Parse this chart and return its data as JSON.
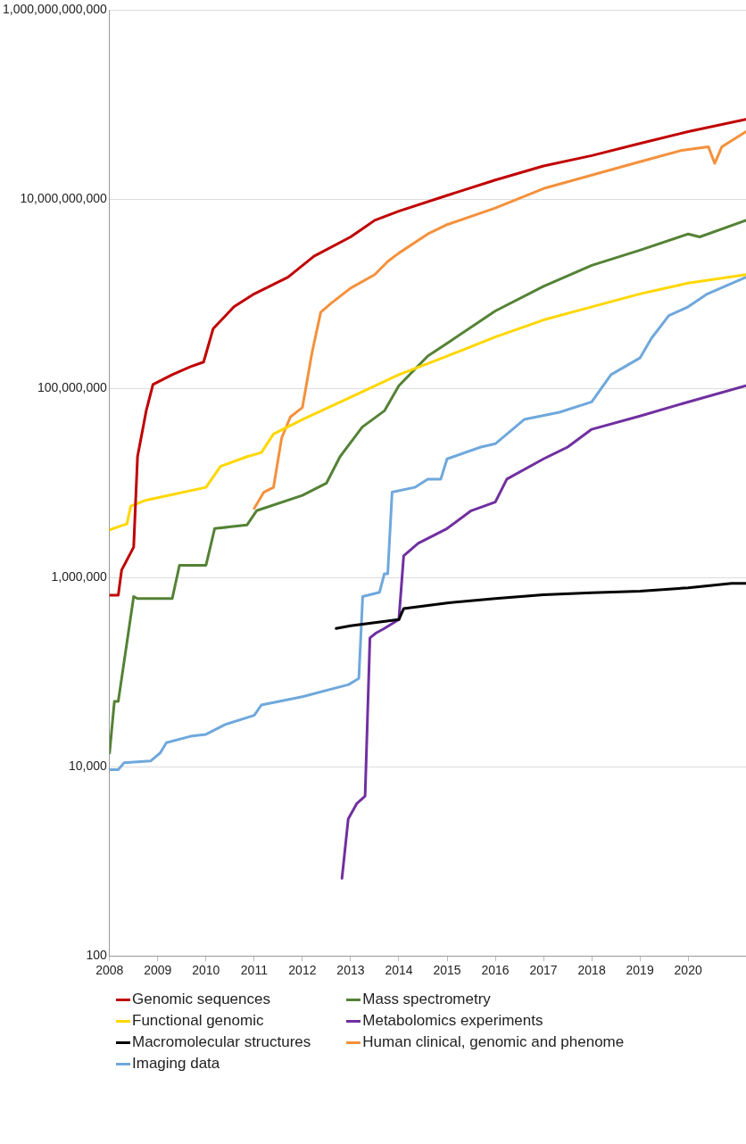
{
  "chart_data": {
    "type": "line",
    "log": "y",
    "grid": "y",
    "legend": "bottom",
    "marker": "none",
    "line_style": "solid",
    "xlim": [
      2008,
      2021.2
    ],
    "xticks": [
      2008,
      2009,
      2010,
      2011,
      2012,
      2013,
      2014,
      2015,
      2016,
      2017,
      2018,
      2019,
      2020
    ],
    "ylim": [
      100,
      1000000000000
    ],
    "yticks": [
      {
        "value": 100,
        "label": "100"
      },
      {
        "value": 10000,
        "label": "10,000"
      },
      {
        "value": 1000000,
        "label": "1,000,000"
      },
      {
        "value": 100000000,
        "label": "100,000,000"
      },
      {
        "value": 10000000000,
        "label": "10,000,000,000"
      },
      {
        "value": 1000000000000,
        "label": "1,000,000,000,000"
      }
    ],
    "series": [
      {
        "name": "Genomic sequences",
        "color": "#c00000",
        "x": [
          2008,
          2008.18,
          2008.25,
          2008.5,
          2008.58,
          2008.76,
          2008.9,
          2009.3,
          2009.68,
          2009.95,
          2010.15,
          2010.58,
          2011,
          2011.7,
          2012.24,
          2013,
          2013.5,
          2014,
          2015,
          2016,
          2017,
          2018,
          2019,
          2020,
          2021.2
        ],
        "values": [
          650000,
          650000,
          1200000,
          2100000,
          19000000,
          58000000,
          110000000,
          140000000,
          170000000,
          190000000,
          430000000,
          730000000,
          1000000000,
          1500000000,
          2500000000,
          4000000000,
          6000000000,
          7500000000,
          11000000000,
          16000000000,
          22500000000,
          29000000000,
          39000000000,
          52000000000,
          70000000000
        ]
      },
      {
        "name": "Functional genomic",
        "color": "#ffd700",
        "x": [
          2008,
          2008.22,
          2008.36,
          2008.44,
          2008.76,
          2009,
          2010,
          2010.3,
          2010.85,
          2011.15,
          2011.4,
          2012,
          2013,
          2014,
          2015,
          2016,
          2017,
          2018,
          2019,
          2020,
          2021.2
        ],
        "values": [
          3200000,
          3500000,
          3700000,
          5700000,
          6600000,
          7000000,
          9000000,
          15000000,
          19000000,
          21000000,
          33000000,
          47000000,
          81000000,
          140000000,
          220000000,
          350000000,
          530000000,
          730000000,
          1000000000,
          1300000000,
          1600000000
        ]
      },
      {
        "name": "Macromolecular structures",
        "color": "#000000",
        "x": [
          2012.7,
          2013,
          2014,
          2014.1,
          2015,
          2016,
          2017,
          2018,
          2019,
          2020,
          2020.9,
          2021.2
        ],
        "values": [
          290000,
          310000,
          360000,
          470000,
          540000,
          600000,
          660000,
          690000,
          720000,
          780000,
          870000,
          870000
        ]
      },
      {
        "name": "Imaging data",
        "color": "#6fa8dc",
        "x": [
          2008,
          2008.18,
          2008.3,
          2008.85,
          2009.05,
          2009.18,
          2009.68,
          2010,
          2010.4,
          2011,
          2011.15,
          2012,
          2012.96,
          2013.17,
          2013.25,
          2013.6,
          2013.7,
          2013.77,
          2013.86,
          2014.33,
          2014.6,
          2014.87,
          2015,
          2015.7,
          2016,
          2016.6,
          2017.33,
          2018,
          2018.4,
          2019,
          2019.24,
          2019.6,
          2020,
          2020.4,
          2021.2
        ],
        "values": [
          9300,
          9300,
          11000,
          11500,
          14000,
          18000,
          21000,
          22000,
          28000,
          35000,
          45000,
          55000,
          74000,
          86000,
          630000,
          700000,
          1100000,
          1100000,
          8000000,
          9000000,
          11000000,
          11000000,
          18000000,
          24000000,
          26000000,
          47000000,
          56000000,
          72000000,
          140000000,
          210000000,
          340000000,
          590000000,
          730000000,
          1000000000,
          1500000000
        ]
      },
      {
        "name": "Mass spectrometry",
        "color": "#548235",
        "x": [
          2008,
          2008.1,
          2008.18,
          2008.35,
          2008.5,
          2008.58,
          2009.3,
          2009.45,
          2010,
          2010.18,
          2010.85,
          2011.05,
          2012,
          2012.5,
          2012.78,
          2013.24,
          2013.7,
          2014,
          2014.6,
          2015,
          2016,
          2017,
          2018,
          2019,
          2020,
          2020.24,
          2021.2
        ],
        "values": [
          14000,
          49000,
          49000,
          190000,
          630000,
          600000,
          600000,
          1350000,
          1350000,
          3300000,
          3600000,
          5100000,
          7400000,
          10000000,
          19000000,
          39000000,
          58000000,
          107000000,
          220000000,
          300000000,
          660000000,
          1200000000,
          2000000000,
          2900000000,
          4300000000,
          4000000000,
          6000000000
        ]
      },
      {
        "name": "Metabolomics experiments",
        "color": "#7030a0",
        "x": [
          2012.82,
          2012.95,
          2013.13,
          2013.3,
          2013.4,
          2013.53,
          2013.7,
          2014,
          2014.1,
          2014.4,
          2015,
          2015.5,
          2016,
          2016.24,
          2017,
          2017.5,
          2018,
          2019,
          2020,
          2021.2
        ],
        "values": [
          660,
          2800,
          4100,
          4900,
          230000,
          260000,
          290000,
          360000,
          1700000,
          2300000,
          3300000,
          5100000,
          6300000,
          11000000,
          18000000,
          24000000,
          37000000,
          51000000,
          72000000,
          107000000
        ]
      },
      {
        "name": "Human clinical, genomic and phenome",
        "color": "#f4913c",
        "x": [
          2011,
          2011.2,
          2011.4,
          2011.57,
          2011.75,
          2012,
          2012.2,
          2012.38,
          2012.6,
          2013,
          2013.5,
          2013.77,
          2014,
          2014.6,
          2015,
          2016,
          2017,
          2018,
          2019,
          2019.87,
          2020.42,
          2020.55,
          2020.7,
          2021.2
        ],
        "values": [
          5400000,
          8000000,
          9000000,
          30000000,
          50000000,
          63000000,
          240000000,
          640000000,
          800000000,
          1150000000,
          1600000000,
          2200000000,
          2700000000,
          4300000000,
          5400000000,
          8100000000,
          13000000000,
          18000000000,
          25000000000,
          33000000000,
          36000000000,
          24000000000,
          36000000000,
          52000000000
        ]
      }
    ]
  }
}
